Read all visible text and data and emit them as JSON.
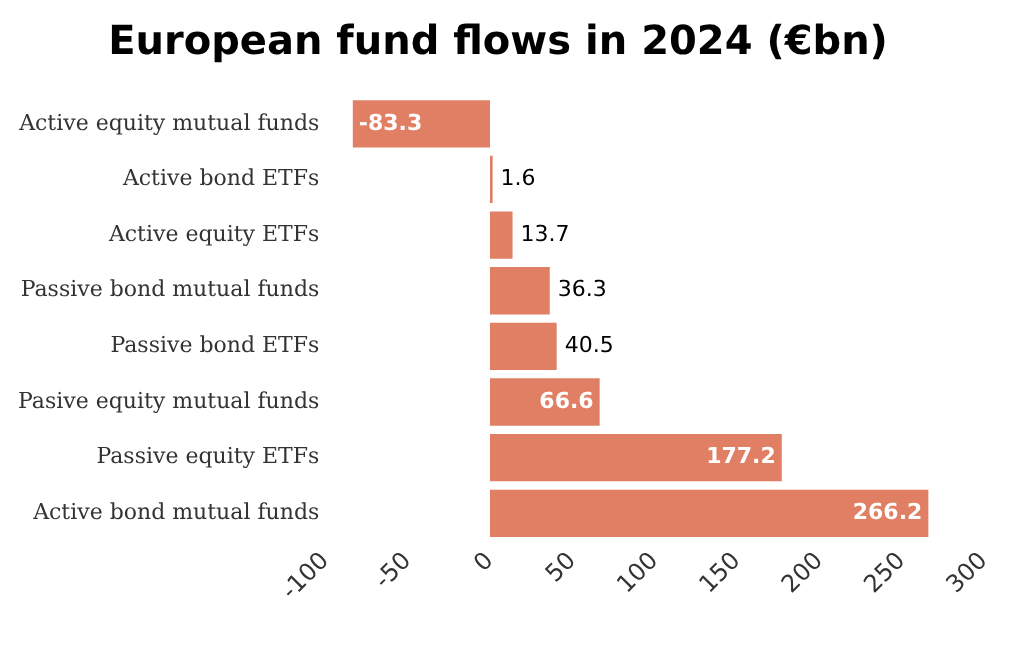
{
  "chart_data": {
    "type": "bar",
    "orientation": "horizontal",
    "title": "European fund flows in 2024 (€bn)",
    "categories": [
      "Active equity mutual funds",
      "Active bond ETFs",
      "Active equity ETFs",
      "Passive bond mutual funds",
      "Passive bond ETFs",
      "Pasive equity mutual funds",
      "Passive equity ETFs",
      "Active bond mutual funds"
    ],
    "values": [
      -83.3,
      1.6,
      13.7,
      36.3,
      40.5,
      66.6,
      177.2,
      266.2
    ],
    "color": "#e07f63",
    "xlim": [
      -100,
      300
    ],
    "xticks": [
      -100,
      -50,
      0,
      50,
      100,
      150,
      200,
      250,
      300
    ],
    "grid": false,
    "legend": false,
    "data_labels": true
  }
}
